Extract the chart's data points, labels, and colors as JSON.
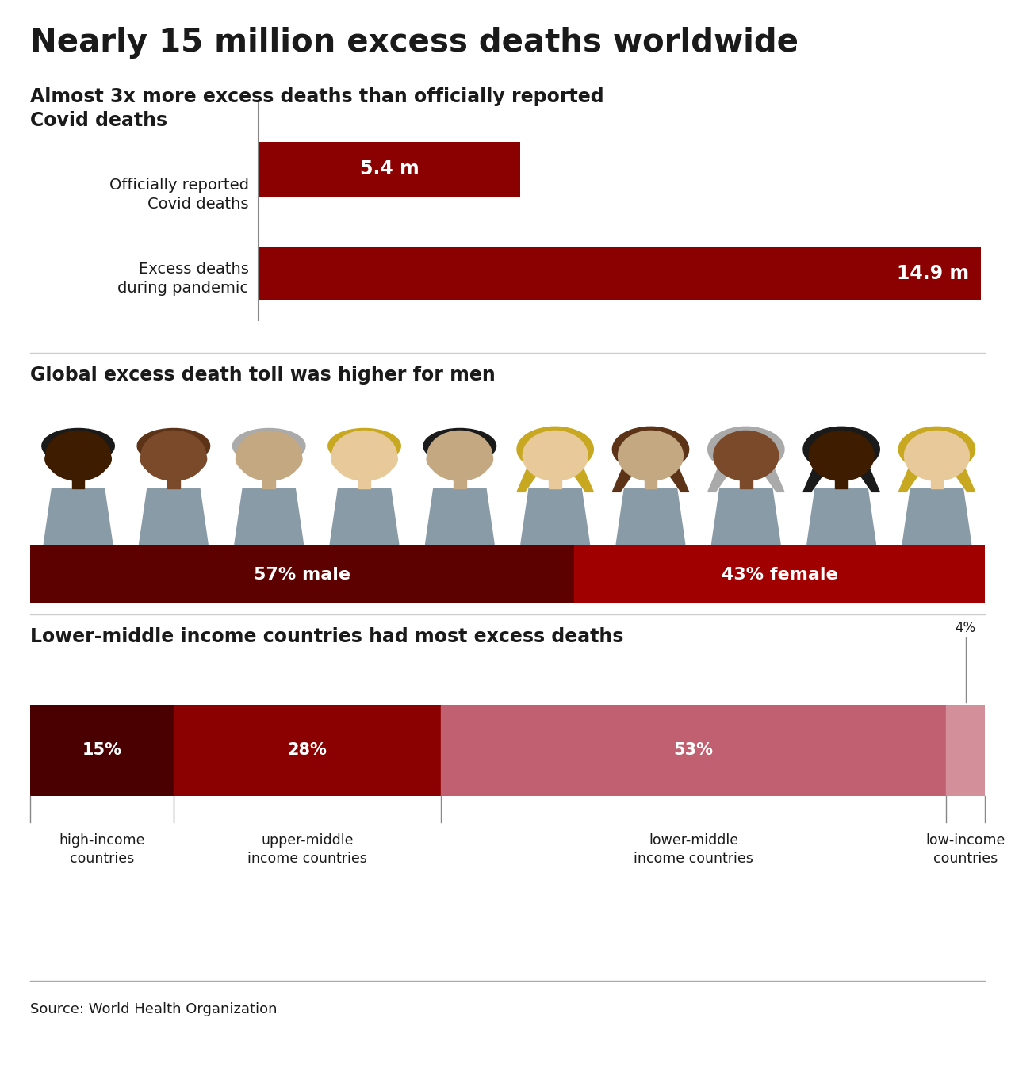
{
  "title": "Nearly 15 million excess deaths worldwide",
  "subtitle1": "Almost 3x more excess deaths than officially reported\nCovid deaths",
  "bar1_label": "Officially reported\nCovid deaths",
  "bar1_value": 5.4,
  "bar1_text": "5.4 m",
  "bar2_label": "Excess deaths\nduring pandemic",
  "bar2_value": 14.9,
  "bar2_text": "14.9 m",
  "bar_color": "#8B0000",
  "bar_max": 14.9,
  "subtitle2": "Global excess death toll was higher for men",
  "male_pct": 57,
  "female_pct": 43,
  "male_label": "57% male",
  "female_label": "43% female",
  "male_color": "#5C0000",
  "female_color": "#A00000",
  "subtitle3": "Lower-middle income countries had most excess deaths",
  "income_segments": [
    15,
    28,
    53,
    4
  ],
  "income_labels": [
    "15%",
    "28%",
    "53%",
    "4%"
  ],
  "income_colors": [
    "#4A0000",
    "#8B0000",
    "#C06070",
    "#D4909A"
  ],
  "income_cat_labels": [
    "high-income\ncountries",
    "upper-middle\nincome countries",
    "lower-middle\nincome countries",
    "low-income\ncountries"
  ],
  "source_text": "Source: World Health Organization",
  "bg_color": "#FFFFFF",
  "text_color": "#1a1a1a",
  "fig_width": 12.8,
  "fig_height": 13.47,
  "male_skin_colors": [
    "#3D1C00",
    "#7B4A2A",
    "#C4A882",
    "#E8C99A",
    "#C4A882"
  ],
  "male_hair_colors": [
    "#1a1a1a",
    "#5C3317",
    "#AAAAAA",
    "#C8A820",
    "#1a1a1a"
  ],
  "female_skin_colors": [
    "#E8C99A",
    "#C4A882",
    "#7B4A2A",
    "#3D1C00"
  ],
  "female_hair_colors": [
    "#C8A820",
    "#5C3317",
    "#AAAAAA",
    "#1a1a1a"
  ],
  "body_color": "#8A9BA8"
}
